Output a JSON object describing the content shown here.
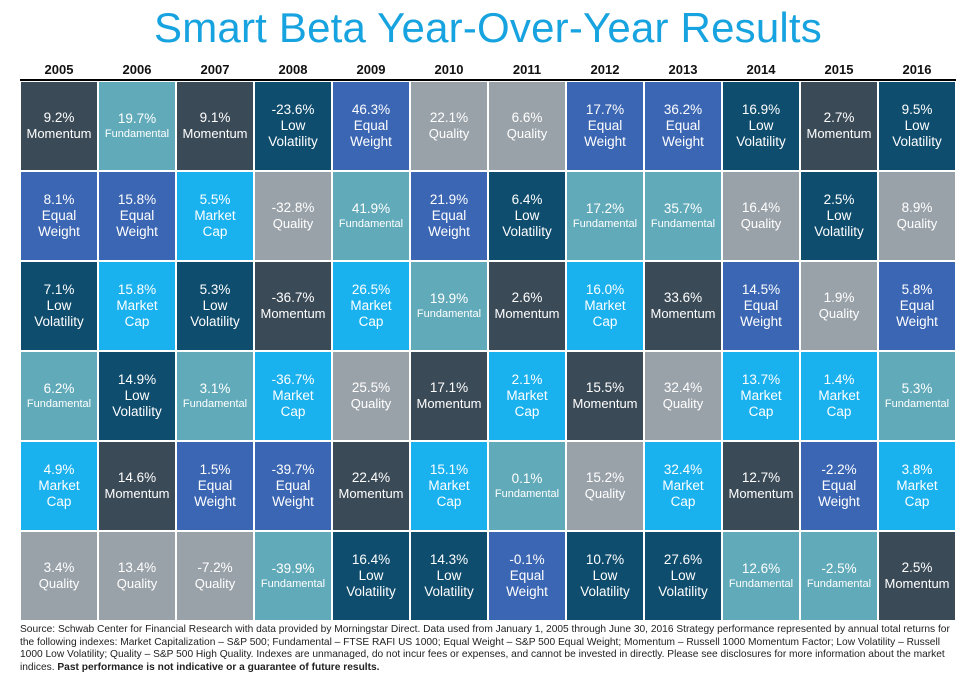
{
  "title": "Smart Beta Year-Over-Year Results",
  "colors": {
    "Momentum": "#3b4a57",
    "Fundamental": "#61aab9",
    "Low Volatility": "#0f4d6e",
    "Equal Weight": "#3b66b3",
    "Quality": "#9aa2a9",
    "Market Cap": "#1ab1ef"
  },
  "chart_data": {
    "type": "table",
    "title": "Smart Beta Year-Over-Year Results",
    "years": [
      "2005",
      "2006",
      "2007",
      "2008",
      "2009",
      "2010",
      "2011",
      "2012",
      "2013",
      "2014",
      "2015",
      "2016"
    ],
    "columns": [
      [
        {
          "value": "9.2%",
          "label": "Momentum"
        },
        {
          "value": "8.1%",
          "label": "Equal Weight"
        },
        {
          "value": "7.1%",
          "label": "Low Volatility"
        },
        {
          "value": "6.2%",
          "label": "Fundamental"
        },
        {
          "value": "4.9%",
          "label": "Market Cap"
        },
        {
          "value": "3.4%",
          "label": "Quality"
        }
      ],
      [
        {
          "value": "19.7%",
          "label": "Fundamental"
        },
        {
          "value": "15.8%",
          "label": "Equal Weight"
        },
        {
          "value": "15.8%",
          "label": "Market Cap"
        },
        {
          "value": "14.9%",
          "label": "Low Volatility"
        },
        {
          "value": "14.6%",
          "label": "Momentum"
        },
        {
          "value": "13.4%",
          "label": "Quality"
        }
      ],
      [
        {
          "value": "9.1%",
          "label": "Momentum"
        },
        {
          "value": "5.5%",
          "label": "Market Cap"
        },
        {
          "value": "5.3%",
          "label": "Low Volatility"
        },
        {
          "value": "3.1%",
          "label": "Fundamental"
        },
        {
          "value": "1.5%",
          "label": "Equal Weight"
        },
        {
          "value": "-7.2%",
          "label": "Quality"
        }
      ],
      [
        {
          "value": "-23.6%",
          "label": "Low Volatility"
        },
        {
          "value": "-32.8%",
          "label": "Quality"
        },
        {
          "value": "-36.7%",
          "label": "Momentum"
        },
        {
          "value": "-36.7%",
          "label": "Market Cap"
        },
        {
          "value": "-39.7%",
          "label": "Equal Weight"
        },
        {
          "value": "-39.9%",
          "label": "Fundamental"
        }
      ],
      [
        {
          "value": "46.3%",
          "label": "Equal Weight"
        },
        {
          "value": "41.9%",
          "label": "Fundamental"
        },
        {
          "value": "26.5%",
          "label": "Market Cap"
        },
        {
          "value": "25.5%",
          "label": "Quality"
        },
        {
          "value": "22.4%",
          "label": "Momentum"
        },
        {
          "value": "16.4%",
          "label": "Low Volatility"
        }
      ],
      [
        {
          "value": "22.1%",
          "label": "Quality"
        },
        {
          "value": "21.9%",
          "label": "Equal Weight"
        },
        {
          "value": "19.9%",
          "label": "Fundamental"
        },
        {
          "value": "17.1%",
          "label": "Momentum"
        },
        {
          "value": "15.1%",
          "label": "Market Cap"
        },
        {
          "value": "14.3%",
          "label": "Low Volatility"
        }
      ],
      [
        {
          "value": "6.6%",
          "label": "Quality"
        },
        {
          "value": "6.4%",
          "label": "Low Volatility"
        },
        {
          "value": "2.6%",
          "label": "Momentum"
        },
        {
          "value": "2.1%",
          "label": "Market Cap"
        },
        {
          "value": "0.1%",
          "label": "Fundamental"
        },
        {
          "value": "-0.1%",
          "label": "Equal Weight"
        }
      ],
      [
        {
          "value": "17.7%",
          "label": "Equal Weight"
        },
        {
          "value": "17.2%",
          "label": "Fundamental"
        },
        {
          "value": "16.0%",
          "label": "Market Cap"
        },
        {
          "value": "15.5%",
          "label": "Momentum"
        },
        {
          "value": "15.2%",
          "label": "Quality"
        },
        {
          "value": "10.7%",
          "label": "Low Volatility"
        }
      ],
      [
        {
          "value": "36.2%",
          "label": "Equal Weight"
        },
        {
          "value": "35.7%",
          "label": "Fundamental"
        },
        {
          "value": "33.6%",
          "label": "Momentum"
        },
        {
          "value": "32.4%",
          "label": "Quality"
        },
        {
          "value": "32.4%",
          "label": "Market Cap"
        },
        {
          "value": "27.6%",
          "label": "Low Volatility"
        }
      ],
      [
        {
          "value": "16.9%",
          "label": "Low Volatility"
        },
        {
          "value": "16.4%",
          "label": "Quality"
        },
        {
          "value": "14.5%",
          "label": "Equal Weight"
        },
        {
          "value": "13.7%",
          "label": "Market Cap"
        },
        {
          "value": "12.7%",
          "label": "Momentum"
        },
        {
          "value": "12.6%",
          "label": "Fundamental"
        }
      ],
      [
        {
          "value": "2.7%",
          "label": "Momentum"
        },
        {
          "value": "2.5%",
          "label": "Low Volatility"
        },
        {
          "value": "1.9%",
          "label": "Quality"
        },
        {
          "value": "1.4%",
          "label": "Market Cap"
        },
        {
          "value": "-2.2%",
          "label": "Equal Weight"
        },
        {
          "value": "-2.5%",
          "label": "Fundamental"
        }
      ],
      [
        {
          "value": "9.5%",
          "label": "Low Volatility"
        },
        {
          "value": "8.9%",
          "label": "Quality"
        },
        {
          "value": "5.8%",
          "label": "Equal Weight"
        },
        {
          "value": "5.3%",
          "label": "Fundamental"
        },
        {
          "value": "3.8%",
          "label": "Market Cap"
        },
        {
          "value": "2.5%",
          "label": "Momentum"
        }
      ]
    ]
  },
  "footer": {
    "source_text": "Source: Schwab Center for Financial Research with data provided by Morningstar Direct.  Data used from January 1, 2005 through June 30, 2016 Strategy performance represented by annual total returns for the following indexes:  Market Capitalization – S&P 500; Fundamental – FTSE RAFI US 1000; Equal Weight – S&P 500 Equal Weight; Momentum – Russell 1000 Momentum Factor; Low Volatility – Russell 1000 Low Volatility; Quality – S&P 500 High Quality.  Indexes are unmanaged, do not incur fees or expenses, and cannot be invested in directly.  Please see disclosures for more information about the market indices.",
    "disclaimer": "Past performance is not indicative or a guarantee of future results."
  }
}
